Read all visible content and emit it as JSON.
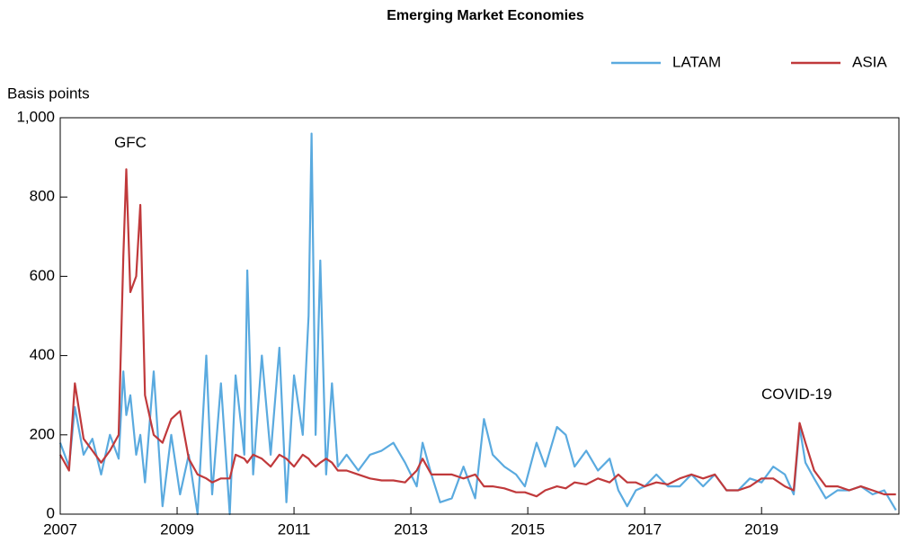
{
  "chart_data": {
    "type": "line",
    "title": "Emerging Market Economies",
    "y_label": "Basis points",
    "annotations": [
      {
        "text": "GFC",
        "x": 2008.2,
        "y": 935
      },
      {
        "text": "COVID-19",
        "x": 2019.6,
        "y": 300
      }
    ],
    "legend": "top-right",
    "grid": false,
    "xlim": [
      2007,
      2021.35
    ],
    "xticks": [
      2007,
      2009,
      2011,
      2013,
      2015,
      2017,
      2019
    ],
    "ylim": [
      0,
      1000
    ],
    "yticks": [
      0,
      200,
      400,
      600,
      800,
      {
        "value": 1000,
        "label": "1,000"
      }
    ],
    "x": [
      2007.0,
      2007.15,
      2007.25,
      2007.4,
      2007.55,
      2007.7,
      2007.85,
      2008.0,
      2008.08,
      2008.13,
      2008.2,
      2008.3,
      2008.37,
      2008.45,
      2008.6,
      2008.75,
      2008.9,
      2009.05,
      2009.2,
      2009.35,
      2009.5,
      2009.6,
      2009.75,
      2009.9,
      2010.0,
      2010.15,
      2010.2,
      2010.3,
      2010.45,
      2010.6,
      2010.75,
      2010.87,
      2011.0,
      2011.15,
      2011.25,
      2011.3,
      2011.37,
      2011.45,
      2011.55,
      2011.65,
      2011.75,
      2011.9,
      2012.1,
      2012.3,
      2012.5,
      2012.7,
      2012.9,
      2013.1,
      2013.2,
      2013.35,
      2013.5,
      2013.7,
      2013.9,
      2014.1,
      2014.25,
      2014.4,
      2014.6,
      2014.8,
      2014.95,
      2015.15,
      2015.3,
      2015.5,
      2015.65,
      2015.8,
      2016.0,
      2016.2,
      2016.4,
      2016.55,
      2016.7,
      2016.85,
      2017.0,
      2017.2,
      2017.4,
      2017.6,
      2017.8,
      2018.0,
      2018.2,
      2018.4,
      2018.6,
      2018.8,
      2019.0,
      2019.2,
      2019.4,
      2019.55,
      2019.65,
      2019.75,
      2019.9,
      2020.1,
      2020.3,
      2020.5,
      2020.7,
      2020.9,
      2021.1,
      2021.3
    ],
    "series": [
      {
        "name": "LATAM",
        "color": "#5aaadf",
        "values": [
          180,
          120,
          270,
          150,
          190,
          100,
          200,
          140,
          360,
          250,
          300,
          150,
          200,
          80,
          360,
          20,
          200,
          50,
          150,
          0,
          400,
          50,
          330,
          0,
          350,
          150,
          615,
          100,
          400,
          150,
          420,
          30,
          350,
          200,
          500,
          960,
          200,
          640,
          100,
          330,
          120,
          150,
          110,
          150,
          160,
          180,
          130,
          70,
          180,
          100,
          30,
          40,
          120,
          40,
          240,
          150,
          120,
          100,
          70,
          180,
          120,
          220,
          200,
          120,
          160,
          110,
          140,
          60,
          20,
          60,
          70,
          100,
          70,
          70,
          100,
          70,
          100,
          60,
          60,
          90,
          80,
          120,
          100,
          50,
          220,
          130,
          90,
          40,
          60,
          60,
          70,
          50,
          60,
          10
        ]
      },
      {
        "name": "ASIA",
        "color": "#c0393b",
        "values": [
          150,
          110,
          330,
          190,
          160,
          130,
          160,
          200,
          650,
          870,
          560,
          600,
          780,
          300,
          200,
          180,
          240,
          260,
          140,
          100,
          90,
          80,
          90,
          90,
          150,
          140,
          130,
          150,
          140,
          120,
          150,
          140,
          120,
          150,
          140,
          130,
          120,
          130,
          140,
          130,
          110,
          110,
          100,
          90,
          85,
          85,
          80,
          110,
          140,
          100,
          100,
          100,
          90,
          100,
          70,
          70,
          65,
          55,
          55,
          45,
          60,
          70,
          65,
          80,
          75,
          90,
          80,
          100,
          80,
          80,
          70,
          80,
          75,
          90,
          100,
          90,
          100,
          60,
          60,
          70,
          90,
          90,
          70,
          60,
          230,
          180,
          110,
          70,
          70,
          60,
          70,
          60,
          50,
          50
        ]
      }
    ]
  }
}
